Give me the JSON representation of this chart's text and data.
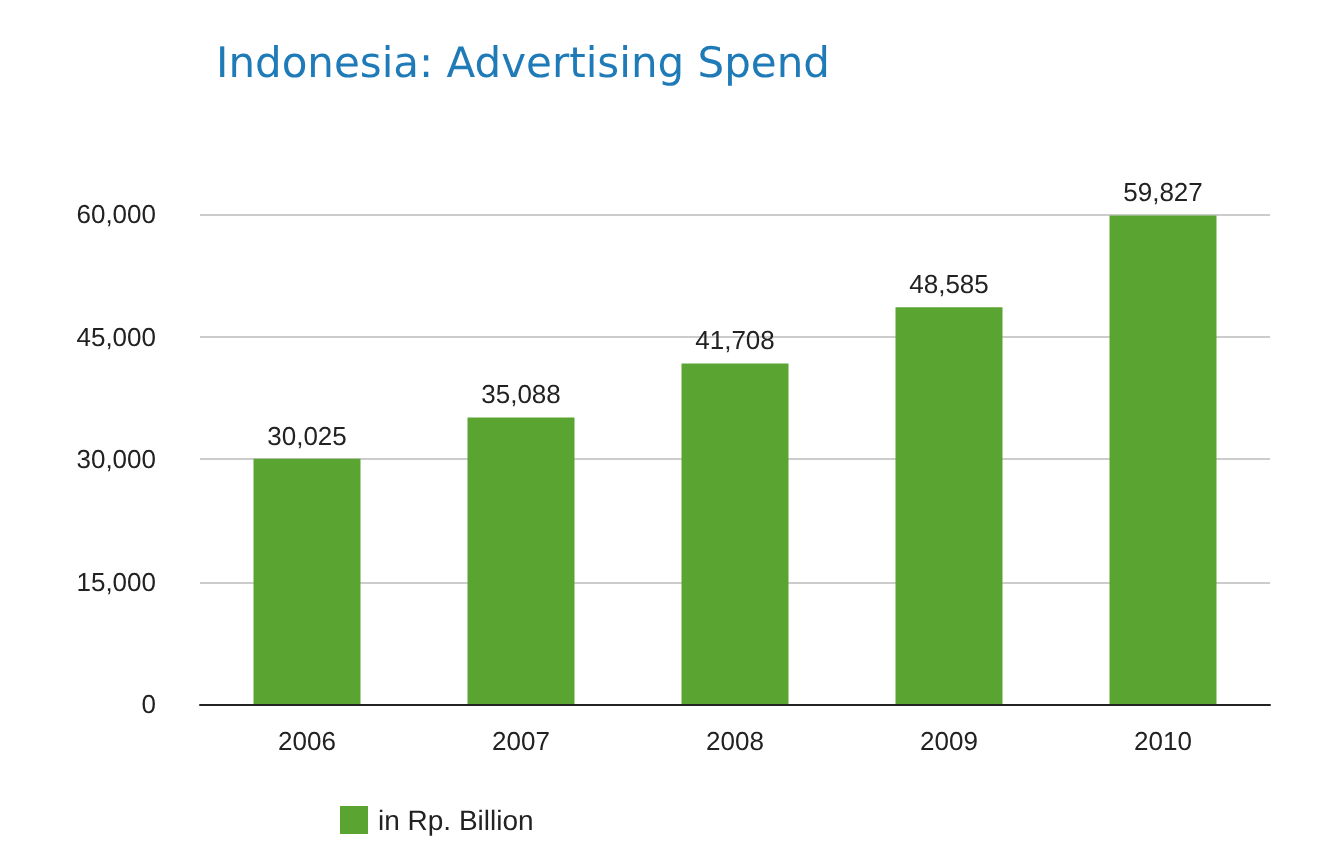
{
  "chart_data": {
    "type": "bar",
    "title": "Indonesia: Advertising Spend",
    "categories": [
      "2006",
      "2007",
      "2008",
      "2009",
      "2010"
    ],
    "series": [
      {
        "name": "in Rp. Billion",
        "color": "#5aa532",
        "values": [
          30025,
          35088,
          41708,
          48585,
          59827
        ],
        "value_labels": [
          "30,025",
          "35,088",
          "41,708",
          "48,585",
          "59,827"
        ]
      }
    ],
    "ylim": [
      0,
      60000
    ],
    "yticks": [
      {
        "value": 0,
        "label": "0"
      },
      {
        "value": 15000,
        "label": "15,000"
      },
      {
        "value": 30000,
        "label": "30,000"
      },
      {
        "value": 45000,
        "label": "45,000"
      },
      {
        "value": 60000,
        "label": "60,000"
      }
    ],
    "grid": "y",
    "legend": "bottom left"
  }
}
